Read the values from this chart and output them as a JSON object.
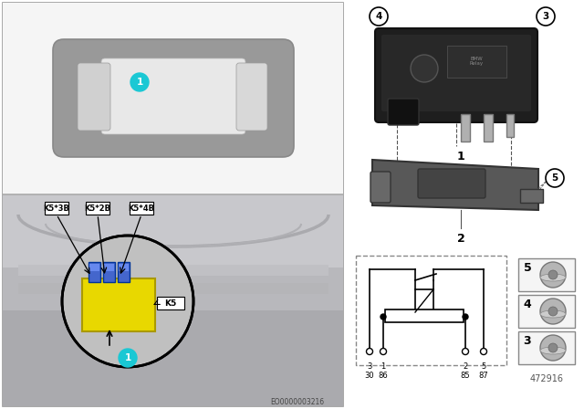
{
  "bg_color": "#ffffff",
  "teal_color": "#1ac8d4",
  "yellow_color": "#e8d800",
  "car_bg": "#f0f0f0",
  "engine_bg": "#c5c5c8",
  "left_border": "#cccccc",
  "callout_labels": [
    "K5*3B",
    "K5*2B",
    "K5*4B"
  ],
  "k5_label": "K5",
  "part_number": "472916",
  "eo_number": "EO0000003216",
  "circuit_pins_top": [
    "3",
    "1",
    "2",
    "5"
  ],
  "circuit_pins_bot": [
    "30",
    "86",
    "85",
    "87"
  ],
  "relay_dark": "#2a2a2a",
  "relay_mid": "#3a3a3a",
  "bracket_color": "#555555",
  "bracket_light": "#777777",
  "nut_color": "#aaaaaa",
  "nut_dark": "#888888",
  "pin_silver": "#b0b0b0",
  "white": "#ffffff",
  "black": "#000000"
}
